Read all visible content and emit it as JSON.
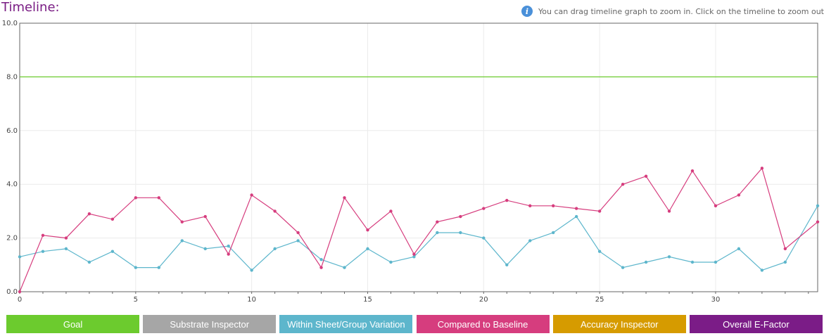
{
  "title": "Timeline:",
  "hint": {
    "icon": "info-icon",
    "text": "You can drag timeline graph to zoom in. Click on the timeline to zoom out"
  },
  "legend": [
    {
      "label": "Goal",
      "color": "#6ccb2e"
    },
    {
      "label": "Substrate Inspector",
      "color": "#a6a6a6"
    },
    {
      "label": "Within Sheet/Group Variation",
      "color": "#5db6cc"
    },
    {
      "label": "Compared to Baseline",
      "color": "#d63d7e"
    },
    {
      "label": "Accuracy Inspector",
      "color": "#d69b00"
    },
    {
      "label": "Overall E-Factor",
      "color": "#7b1c87"
    }
  ],
  "chart_data": {
    "type": "line",
    "xlim": [
      0,
      34.4
    ],
    "ylim": [
      0,
      10
    ],
    "x_ticks": [
      "0",
      "5",
      "10",
      "15",
      "20",
      "25",
      "30"
    ],
    "y_ticks": [
      "0.0",
      "2.0",
      "4.0",
      "6.0",
      "8.0",
      "10.0"
    ],
    "grid": true,
    "series": [
      {
        "name": "Goal",
        "color": "#6ccb2e",
        "markers": false,
        "x": [
          0,
          34.4
        ],
        "values": [
          8.0,
          8.0
        ]
      },
      {
        "name": "Within Sheet/Group Variation",
        "color": "#5db6cc",
        "markers": true,
        "x": [
          0,
          1,
          2,
          3,
          4,
          5,
          6,
          7,
          8,
          9,
          10,
          11,
          12,
          13,
          14,
          15,
          16,
          17,
          18,
          19,
          20,
          21,
          22,
          23,
          24,
          25,
          26,
          27,
          28,
          29,
          30,
          31,
          32,
          33,
          34.4
        ],
        "values": [
          1.3,
          1.5,
          1.6,
          1.1,
          1.5,
          0.9,
          0.9,
          1.9,
          1.6,
          1.7,
          0.8,
          1.6,
          1.9,
          1.2,
          0.9,
          1.6,
          1.1,
          1.3,
          2.2,
          2.2,
          2.0,
          1.0,
          1.9,
          2.2,
          2.8,
          1.5,
          0.9,
          1.1,
          1.3,
          1.1,
          1.1,
          1.6,
          0.8,
          1.1,
          3.2
        ]
      },
      {
        "name": "Compared to Baseline",
        "color": "#d63d7e",
        "markers": true,
        "x": [
          0,
          1,
          2,
          3,
          4,
          5,
          6,
          7,
          8,
          9,
          10,
          11,
          12,
          13,
          14,
          15,
          16,
          17,
          18,
          19,
          20,
          21,
          22,
          23,
          24,
          25,
          26,
          27,
          28,
          29,
          30,
          31,
          32,
          33,
          34.4
        ],
        "values": [
          0.0,
          2.1,
          2.0,
          2.9,
          2.7,
          3.5,
          3.5,
          2.6,
          2.8,
          1.4,
          3.6,
          3.0,
          2.2,
          0.9,
          3.5,
          2.3,
          3.0,
          1.4,
          2.6,
          2.8,
          3.1,
          3.4,
          3.2,
          3.2,
          3.1,
          3.0,
          4.0,
          4.3,
          3.0,
          4.5,
          3.2,
          3.6,
          4.6,
          1.6,
          2.6
        ]
      }
    ]
  }
}
